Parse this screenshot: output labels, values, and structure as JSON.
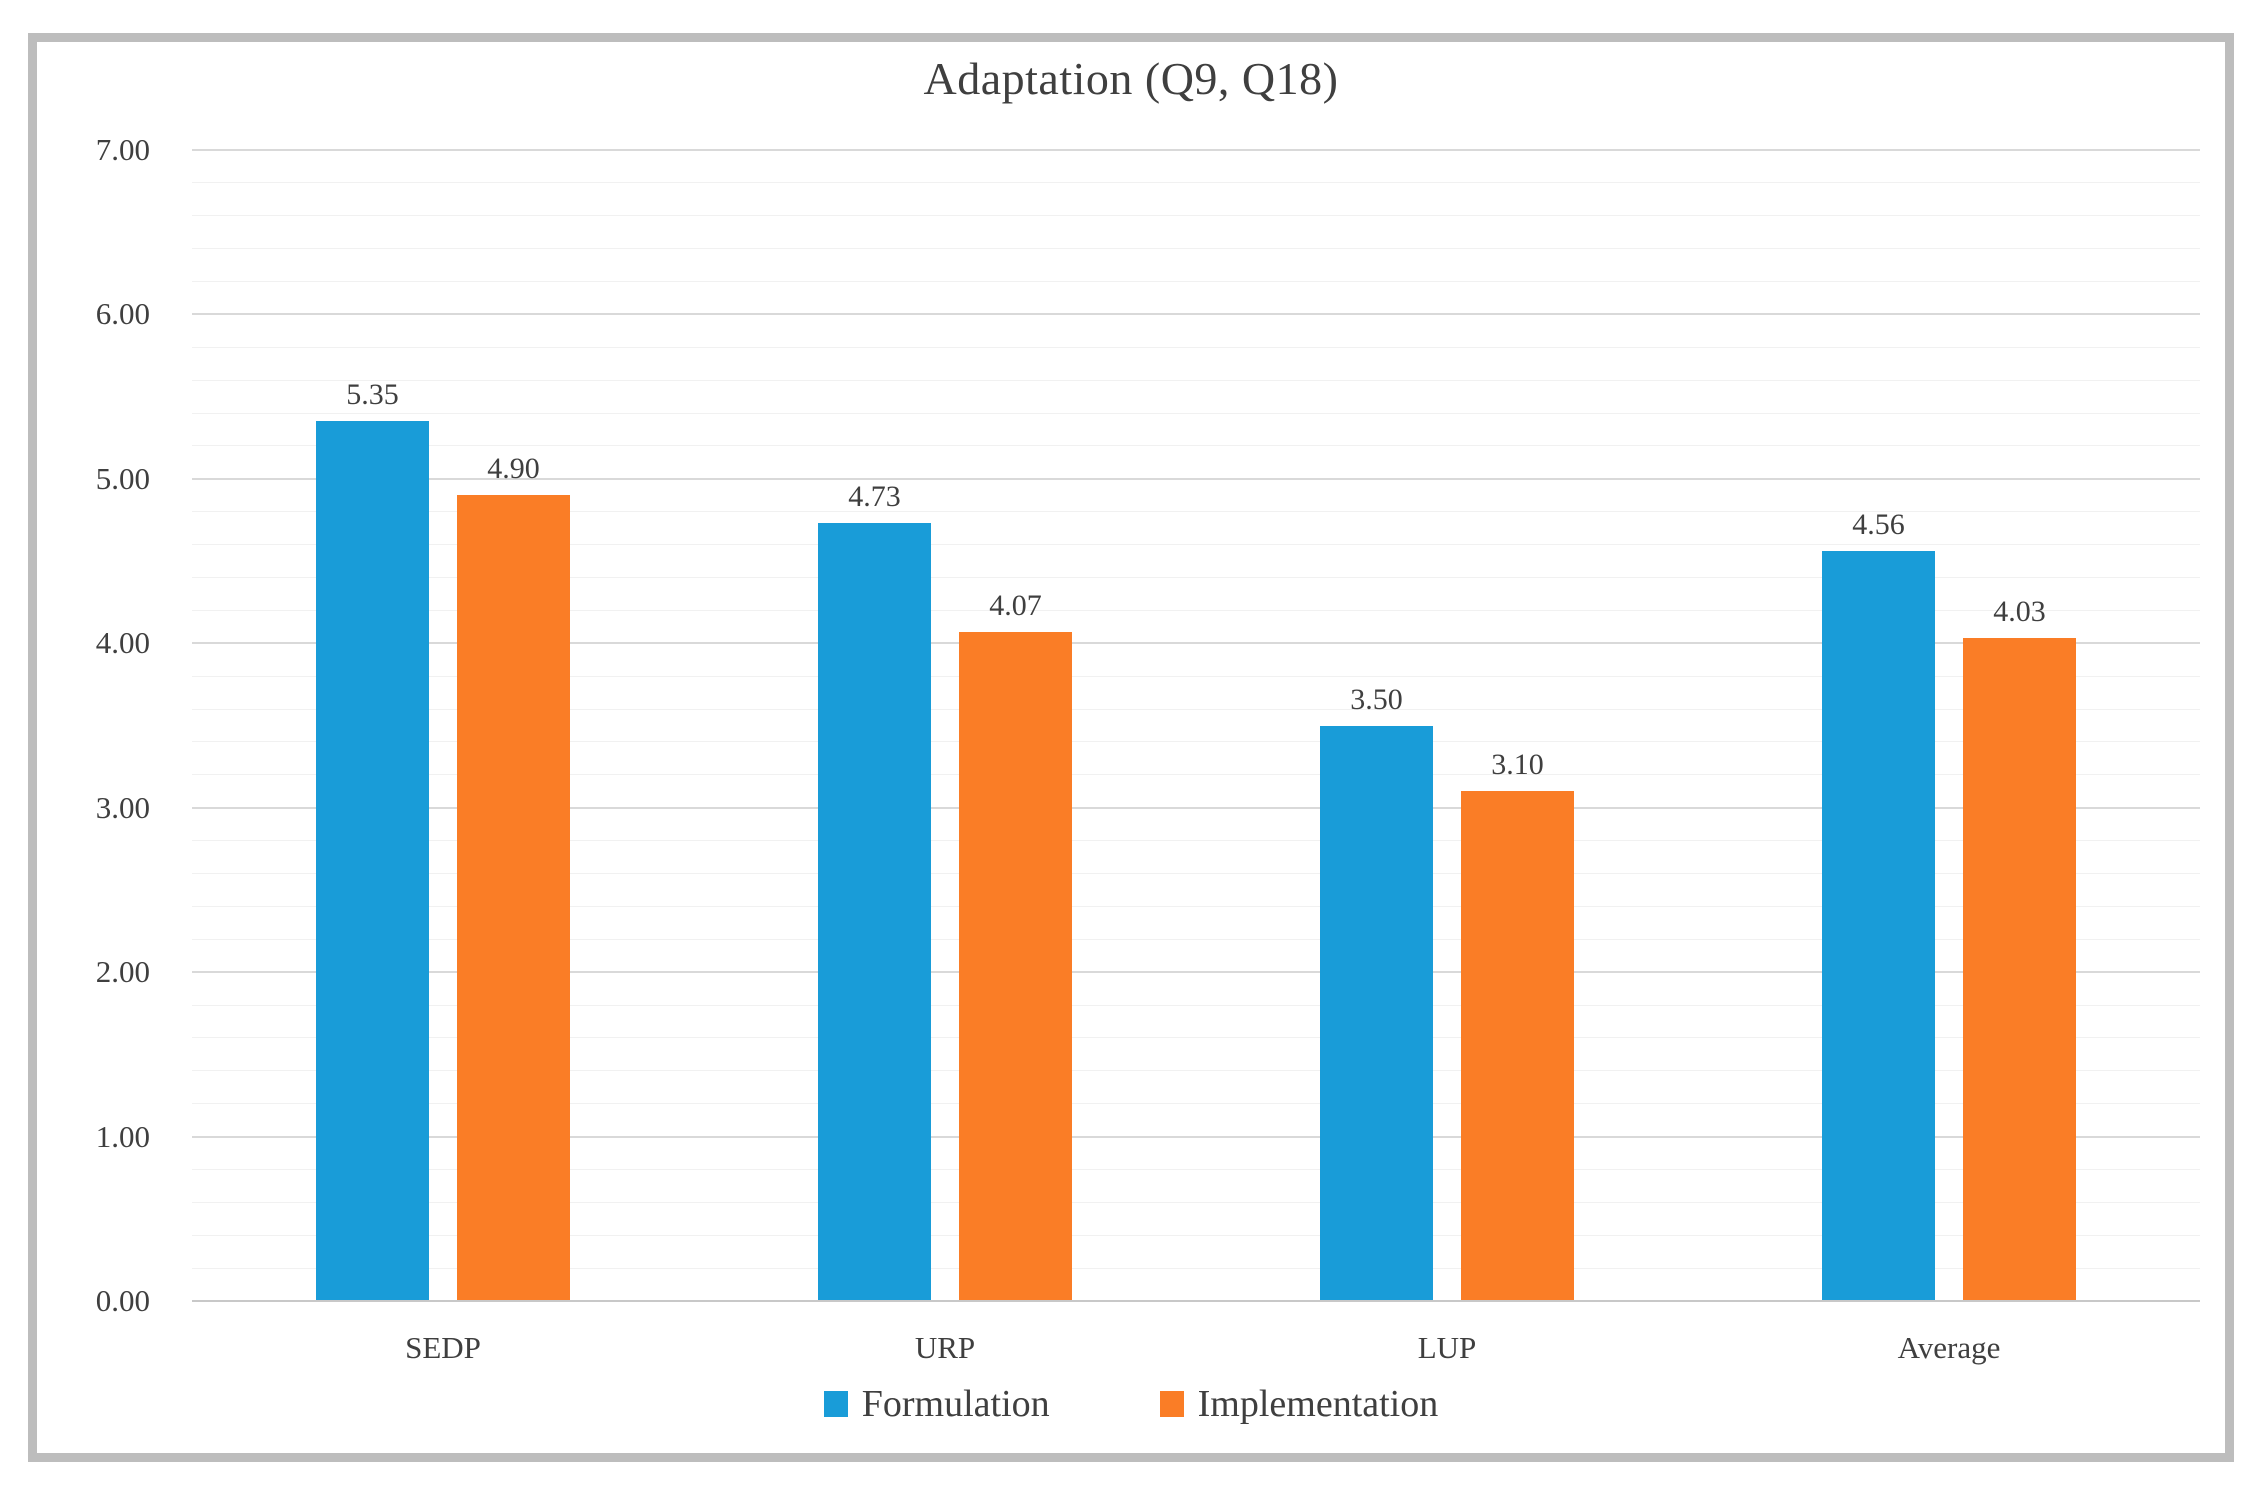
{
  "title": "Adaptation (Q9, Q18)",
  "colors": {
    "formulation": "#199CD8",
    "implementation": "#FA7D26",
    "text": "#3F3F3F",
    "major_grid": "#D9D9D9",
    "minor_grid": "#F1F1F1",
    "axis_line": "#C8C8C8",
    "frame_border": "#BDBDBD"
  },
  "legend": {
    "items": [
      {
        "label": "Formulation",
        "color": "#199CD8"
      },
      {
        "label": "Implementation",
        "color": "#FA7D26"
      }
    ],
    "position": "bottom"
  },
  "y_axis": {
    "min": 0,
    "max": 7,
    "major_step": 1,
    "minor_step": 0.2,
    "tick_labels": [
      "0.00",
      "1.00",
      "2.00",
      "3.00",
      "4.00",
      "5.00",
      "6.00",
      "7.00"
    ]
  },
  "chart_data": {
    "type": "bar",
    "title": "Adaptation (Q9, Q18)",
    "xlabel": "",
    "ylabel": "",
    "ylim": [
      0,
      7
    ],
    "grid": true,
    "legend_position": "bottom",
    "categories": [
      "SEDP",
      "URP",
      "LUP",
      "Average"
    ],
    "series": [
      {
        "name": "Formulation",
        "values": [
          5.35,
          4.73,
          3.5,
          4.56
        ],
        "labels": [
          "5.35",
          "4.73",
          "3.50",
          "4.56"
        ]
      },
      {
        "name": "Implementation",
        "values": [
          4.9,
          4.07,
          3.1,
          4.03
        ],
        "labels": [
          "4.90",
          "4.07",
          "3.10",
          "4.03"
        ]
      }
    ]
  }
}
